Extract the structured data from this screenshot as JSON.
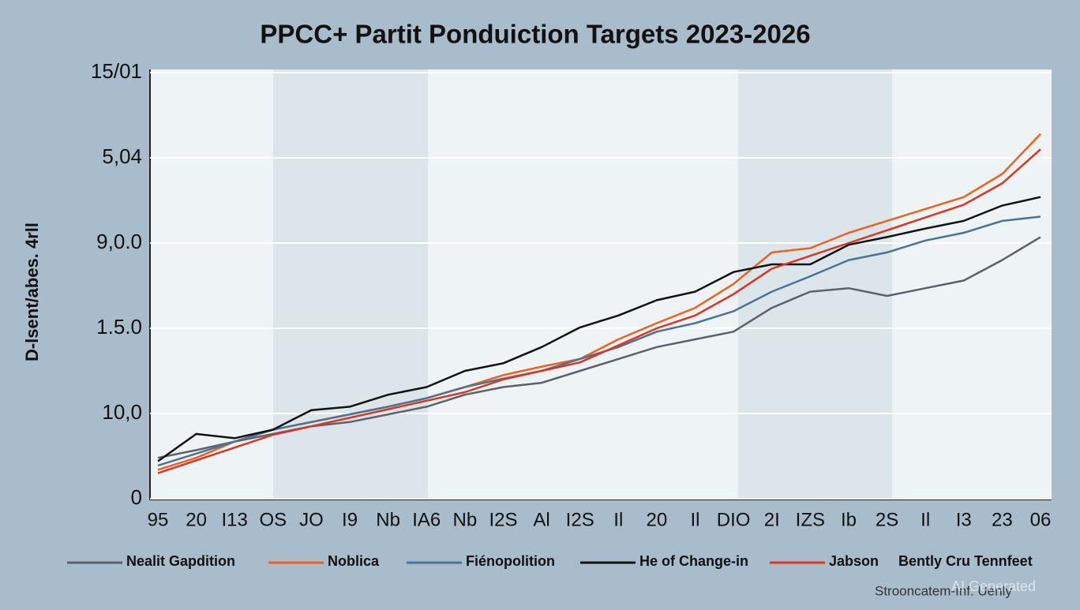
{
  "chart_data": {
    "type": "line",
    "title": "PPCC+ Partit Ponduiction Targets 2023-2026",
    "y_label": "D-lsent/abes. 4rll",
    "categories": [
      "95",
      "20",
      "I13",
      "OS",
      "JO",
      "I9",
      "Nb",
      "IA6",
      "Nb",
      "I2S",
      "Al",
      "I2S",
      "Il",
      "20",
      "Il",
      "DIO",
      "2I",
      "IZS",
      "Ib",
      "2S",
      "Il",
      "I3",
      "23",
      "06"
    ],
    "ylim": [
      0,
      5
    ],
    "yticks": [
      {
        "value": 0,
        "label": "0"
      },
      {
        "value": 1,
        "label": "10,0"
      },
      {
        "value": 2,
        "label": "1.5.0"
      },
      {
        "value": 3,
        "label": "9,0.0"
      },
      {
        "value": 4,
        "label": "5,04"
      },
      {
        "value": 5,
        "label": "15/01"
      }
    ],
    "grid": true,
    "legend_position": "bottom",
    "series": [
      {
        "name": "Nealit Gapdition",
        "color": "#5b626e",
        "values": [
          0.48,
          0.57,
          0.67,
          0.76,
          0.85,
          0.9,
          0.99,
          1.08,
          1.22,
          1.31,
          1.36,
          1.5,
          1.64,
          1.78,
          1.87,
          1.96,
          2.24,
          2.43,
          2.47,
          2.38,
          2.47,
          2.56,
          2.8,
          3.07
        ]
      },
      {
        "name": "Noblica",
        "color": "#f0601e",
        "values": [
          0.34,
          0.48,
          0.67,
          0.81,
          0.9,
          0.99,
          1.08,
          1.18,
          1.31,
          1.45,
          1.55,
          1.64,
          1.87,
          2.06,
          2.24,
          2.52,
          2.89,
          2.94,
          3.12,
          3.26,
          3.4,
          3.54,
          3.81,
          4.28
        ]
      },
      {
        "name": "Fiénopolition",
        "color": "#4a7496",
        "values": [
          0.39,
          0.53,
          0.67,
          0.81,
          0.9,
          0.99,
          1.08,
          1.18,
          1.31,
          1.41,
          1.5,
          1.64,
          1.78,
          1.96,
          2.06,
          2.2,
          2.43,
          2.61,
          2.8,
          2.89,
          3.03,
          3.12,
          3.26,
          3.31
        ]
      },
      {
        "name": "He of Change-in",
        "color": "#111111",
        "values": [
          0.44,
          0.76,
          0.71,
          0.81,
          1.04,
          1.08,
          1.22,
          1.31,
          1.5,
          1.59,
          1.78,
          2.01,
          2.15,
          2.33,
          2.43,
          2.66,
          2.75,
          2.75,
          2.98,
          3.07,
          3.17,
          3.26,
          3.44,
          3.54
        ]
      },
      {
        "name": "Jabson",
        "color": "#e03322",
        "values": [
          0.3,
          0.45,
          0.6,
          0.75,
          0.85,
          0.95,
          1.05,
          1.15,
          1.25,
          1.4,
          1.5,
          1.6,
          1.8,
          2.0,
          2.15,
          2.4,
          2.7,
          2.85,
          3.0,
          3.15,
          3.3,
          3.45,
          3.7,
          4.1
        ]
      }
    ],
    "legend_extra": "Bently Cru Tennfeet",
    "footer_note": "Strooncatem-Inf. Uenly",
    "watermark": "AI Generated"
  }
}
